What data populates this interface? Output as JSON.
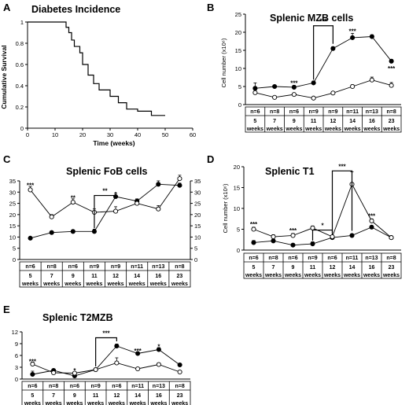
{
  "chart_data": [
    {
      "panel": "A",
      "type": "line",
      "title": "Diabetes Incidence",
      "xlabel": "Time (weeks)",
      "ylabel": "Cumulative Survival",
      "xlim": [
        0,
        60
      ],
      "ylim": [
        0,
        1
      ],
      "xticks": [
        "0",
        "10",
        "20",
        "30",
        "40",
        "50",
        "60"
      ],
      "yticks": [
        "0",
        "0.2",
        "0.4",
        "0.6",
        "0.8",
        "1"
      ],
      "steps": [
        [
          0,
          1
        ],
        [
          14,
          1
        ],
        [
          14,
          0.95
        ],
        [
          15,
          0.95
        ],
        [
          15,
          0.9
        ],
        [
          16,
          0.9
        ],
        [
          16,
          0.83
        ],
        [
          17,
          0.83
        ],
        [
          17,
          0.77
        ],
        [
          19,
          0.77
        ],
        [
          19,
          0.71
        ],
        [
          20,
          0.71
        ],
        [
          20,
          0.6
        ],
        [
          22,
          0.6
        ],
        [
          22,
          0.5
        ],
        [
          24,
          0.5
        ],
        [
          24,
          0.42
        ],
        [
          26,
          0.42
        ],
        [
          26,
          0.36
        ],
        [
          30,
          0.36
        ],
        [
          30,
          0.3
        ],
        [
          33,
          0.3
        ],
        [
          33,
          0.24
        ],
        [
          36,
          0.24
        ],
        [
          36,
          0.18
        ],
        [
          40,
          0.18
        ],
        [
          40,
          0.16
        ],
        [
          45,
          0.16
        ],
        [
          45,
          0.12
        ],
        [
          50,
          0.12
        ]
      ]
    },
    {
      "panel": "B",
      "type": "line",
      "title": "Splenic MZB cells",
      "ylabel": "Cell number (x10⁶)",
      "ylim": [
        0,
        25
      ],
      "yticks": [
        "0",
        "5",
        "10",
        "15",
        "20",
        "25"
      ],
      "n_row": [
        "n=6",
        "n=8",
        "n=6",
        "n=9",
        "n=9",
        "n=11",
        "n=13",
        "n=8"
      ],
      "weeks": [
        "5",
        "7",
        "9",
        "11",
        "12",
        "14",
        "16",
        "23"
      ],
      "week_unit": "weeks",
      "series": [
        {
          "marker": "filled",
          "values": [
            4.5,
            5,
            4.8,
            6,
            15.5,
            18.5,
            18.8,
            12
          ],
          "err": [
            1.5,
            0.3,
            0.5,
            0.5,
            0.5,
            1.2,
            0.5,
            0.5
          ]
        },
        {
          "marker": "open",
          "values": [
            3.3,
            2,
            2.8,
            1.8,
            3.2,
            5,
            6.8,
            5.3
          ],
          "err": [
            0.8,
            0.3,
            0.4,
            0.3,
            0.4,
            0.5,
            0.8,
            0.8
          ]
        }
      ],
      "stars": [
        {
          "i": 2,
          "y": 6,
          "text": "***"
        },
        {
          "i": 5,
          "y": 20.3,
          "text": "***"
        },
        {
          "i": 7,
          "y": 10,
          "text": "***"
        }
      ],
      "bracket": {
        "from": 3,
        "to": 4,
        "y": 21.8,
        "text": "***"
      }
    },
    {
      "panel": "C",
      "type": "line",
      "title": "Splenic FoB cells",
      "ylim": [
        0,
        35
      ],
      "yticks": [
        "0",
        "5",
        "10",
        "15",
        "20",
        "25",
        "30",
        "35"
      ],
      "n_row": [
        "n=6",
        "n=8",
        "n=6",
        "n=9",
        "n=9",
        "n=11",
        "n=13",
        "n=8"
      ],
      "weeks": [
        "5",
        "7",
        "9",
        "11",
        "12",
        "14",
        "16",
        "23"
      ],
      "week_unit": "weeks",
      "series": [
        {
          "marker": "filled",
          "values": [
            9.5,
            12,
            12.5,
            12.5,
            28,
            26,
            33.5,
            33
          ],
          "err": [
            0.5,
            0.5,
            0.5,
            1,
            1.5,
            1,
            1.5,
            1
          ]
        },
        {
          "marker": "open",
          "values": [
            31,
            19,
            25.5,
            21,
            21.5,
            25,
            22.5,
            36
          ],
          "err": [
            1.5,
            1,
            1.5,
            1.5,
            2,
            1.5,
            1.5,
            1.5
          ]
        }
      ],
      "stars": [
        {
          "i": 0,
          "y": 33,
          "text": "***"
        },
        {
          "i": 2,
          "y": 27.5,
          "text": "**"
        }
      ],
      "bracket": {
        "from": 3,
        "to": 4,
        "y": 28.5,
        "text": "**"
      }
    },
    {
      "panel": "D",
      "type": "line",
      "title": "Splenic T1",
      "ylabel": "Cell number (x10⁶)",
      "ylim": [
        0,
        20
      ],
      "yticks": [
        "0",
        "5",
        "10",
        "15",
        "20"
      ],
      "n_row": [
        "n=6",
        "n=8",
        "n=6",
        "n=9",
        "n=6",
        "n=11",
        "n=13",
        "n=8"
      ],
      "weeks": [
        "5",
        "7",
        "9",
        "11",
        "12",
        "14",
        "16",
        "23"
      ],
      "week_unit": "weeks",
      "series": [
        {
          "marker": "filled",
          "values": [
            1.8,
            2.2,
            1.2,
            1.5,
            3,
            3.5,
            5.5,
            3
          ],
          "err": [
            0.5,
            0.3,
            0.4,
            0.5,
            0.3,
            0.3,
            0.4,
            0.3
          ]
        },
        {
          "marker": "open",
          "values": [
            5,
            3.2,
            3.5,
            5.3,
            3.2,
            15.8,
            7,
            3
          ],
          "err": [
            0.5,
            0.5,
            0.5,
            0.5,
            0.3,
            3,
            0.5,
            0.3
          ]
        }
      ],
      "stars": [
        {
          "i": 0,
          "y": 6.2,
          "text": "***"
        },
        {
          "i": 2,
          "y": 4.7,
          "text": "***"
        },
        {
          "i": 6,
          "y": 8.2,
          "text": "***"
        }
      ],
      "brackets": [
        {
          "from": 3,
          "to": 4,
          "y": 4.8,
          "text": "*"
        },
        {
          "from": 4,
          "to": 5,
          "y": 19,
          "text": "***"
        }
      ]
    },
    {
      "panel": "E",
      "type": "line",
      "title": "Splenic T2MZB",
      "ylim": [
        0,
        12
      ],
      "yticks": [
        "0",
        "3",
        "6",
        "9",
        "12"
      ],
      "n_row": [
        "n=6",
        "n=8",
        "n=6",
        "n=9",
        "n=6",
        "n=11",
        "n=13",
        "n=8"
      ],
      "weeks": [
        "5",
        "7",
        "9",
        "11",
        "12",
        "14",
        "16",
        "23"
      ],
      "week_unit": "weeks",
      "series": [
        {
          "marker": "filled",
          "values": [
            1.2,
            2.2,
            0.8,
            2.4,
            8.4,
            6.5,
            7.5,
            3.6
          ],
          "err": [
            0.8,
            0.3,
            0.2,
            0.2,
            0.5,
            0.4,
            0.5,
            0.4
          ]
        },
        {
          "marker": "open",
          "values": [
            3.8,
            1.6,
            1.5,
            2.4,
            4.1,
            2.6,
            3.7,
            1.8
          ],
          "err": [
            0.5,
            0.3,
            0.3,
            0.3,
            1.3,
            0.3,
            0.4,
            0.3
          ]
        }
      ],
      "stars": [
        {
          "i": 0,
          "y": 4.5,
          "text": "***"
        },
        {
          "i": 2,
          "y": 2.2,
          "text": "*"
        },
        {
          "i": 5,
          "y": 7.2,
          "text": "***"
        },
        {
          "i": 6,
          "y": 8.3,
          "text": "*"
        }
      ],
      "bracket": {
        "from": 3,
        "to": 4,
        "y": 10.5,
        "text": "***"
      }
    }
  ]
}
